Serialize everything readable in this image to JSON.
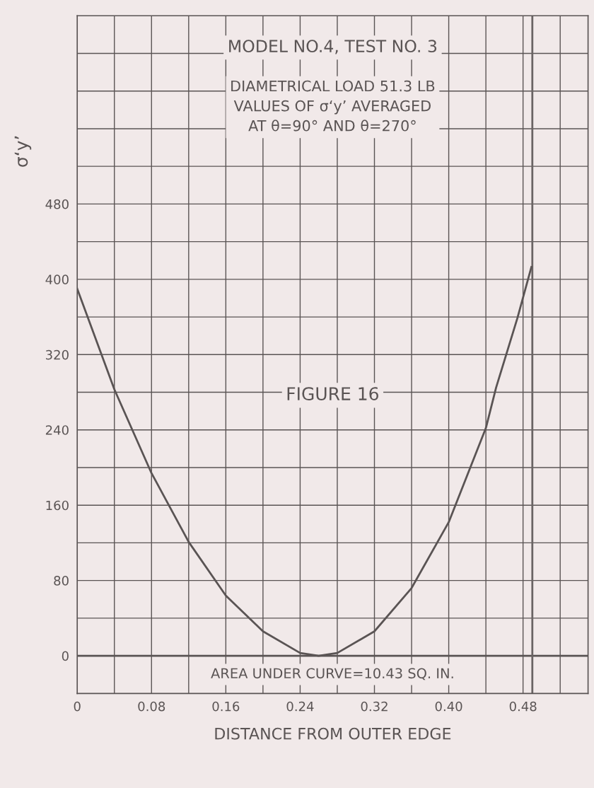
{
  "chart_data": {
    "type": "line",
    "title": "MODEL NO.4, TEST NO. 3",
    "subtitle": "DIAMETRICAL LOAD 51.3 LB\nVALUES OF σ‘y’ AVERAGED\nAT θ=90° AND θ=270°",
    "xlabel": "DISTANCE FROM OUTER EDGE",
    "ylabel": "σ‘y’",
    "annotations": [
      "FIGURE 16",
      "AREA UNDER CURVE=10.43 SQ. IN."
    ],
    "x": [
      0,
      0.04,
      0.08,
      0.12,
      0.16,
      0.2,
      0.24,
      0.26,
      0.28,
      0.32,
      0.36,
      0.4,
      0.44,
      0.451,
      0.474,
      0.489
    ],
    "series": [
      {
        "color": "#5a5454",
        "values": [
          390,
          283,
          194,
          121,
          64,
          26,
          3,
          0,
          3,
          26,
          72,
          142,
          242,
          285,
          359,
          413
        ]
      }
    ],
    "xlim": [
      0,
      0.55
    ],
    "ylim": [
      -40,
      680
    ],
    "xticks": [
      0,
      {
        "value": 0.04,
        "label": null
      },
      0.08,
      {
        "value": 0.12,
        "label": null
      },
      0.16,
      {
        "value": 0.2,
        "label": null
      },
      0.24,
      {
        "value": 0.28,
        "label": null
      },
      0.32,
      {
        "value": 0.36,
        "label": null
      },
      {
        "value": 0.4,
        "label": "0.40"
      },
      {
        "value": 0.44,
        "label": null
      },
      0.48,
      {
        "value": 0.52,
        "label": null
      }
    ],
    "yticks": [
      0,
      {
        "value": 40,
        "label": null
      },
      80,
      {
        "value": 120,
        "label": null
      },
      160,
      {
        "value": 200,
        "label": null
      },
      240,
      {
        "value": 280,
        "label": null
      },
      320,
      {
        "value": 360,
        "label": null
      },
      400,
      {
        "value": 440,
        "label": null
      },
      480,
      {
        "value": 520,
        "label": null
      },
      {
        "value": 560,
        "label": null
      },
      {
        "value": 600,
        "label": null
      },
      {
        "value": 640,
        "label": null
      }
    ],
    "ref_lines": [
      {
        "axis": "y",
        "value": 0,
        "color": "#5a5454"
      },
      {
        "axis": "x",
        "value": 0.49,
        "color": "#6a6464"
      }
    ],
    "grid": true,
    "marker": "none",
    "line_style": "solid"
  }
}
